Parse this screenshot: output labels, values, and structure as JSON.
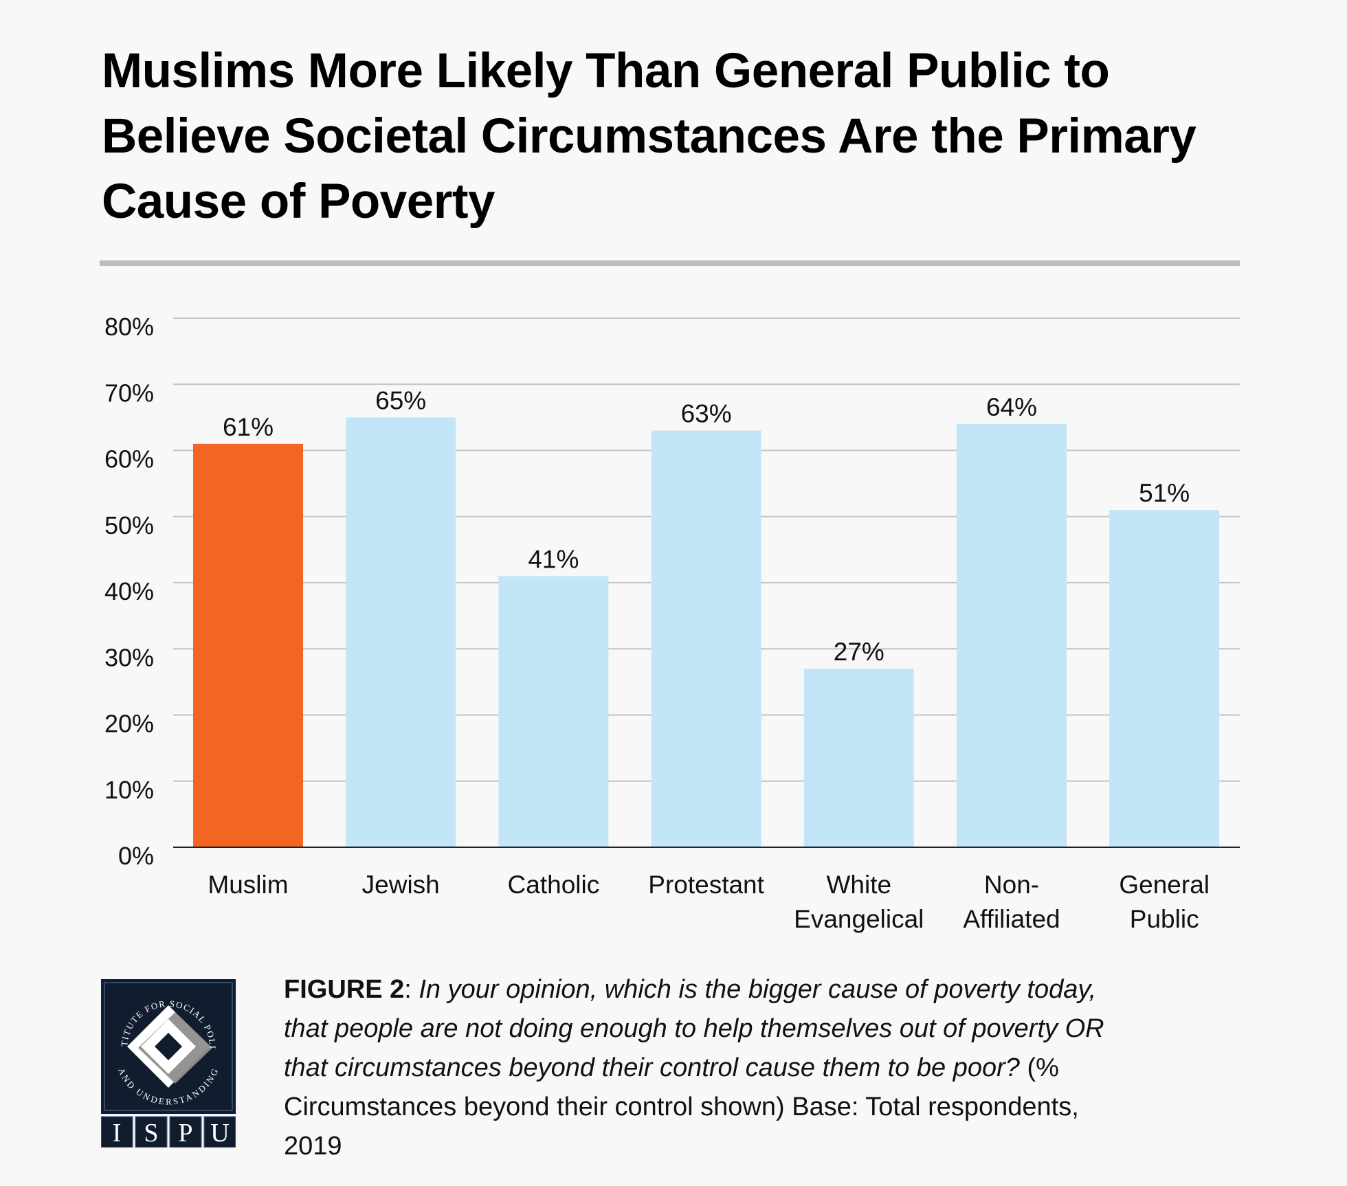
{
  "title": {
    "lines": [
      "Muslims More Likely Than General Public to",
      "Believe Societal Circumstances Are the Primary",
      "Cause of Poverty"
    ]
  },
  "chart_data": {
    "type": "bar",
    "title": "Muslims More Likely Than General Public to Believe Societal Circumstances Are the Primary Cause of Poverty",
    "xlabel": "",
    "ylabel": "",
    "categories": [
      "Muslim",
      "Jewish",
      "Catholic",
      "Protestant",
      "White Evangelical",
      "Non-Affiliated",
      "General Public"
    ],
    "category_label_lines": [
      [
        "Muslim"
      ],
      [
        "Jewish"
      ],
      [
        "Catholic"
      ],
      [
        "Protestant"
      ],
      [
        "White",
        "Evangelical"
      ],
      [
        "Non-",
        "Affiliated"
      ],
      [
        "General",
        "Public"
      ]
    ],
    "values": [
      61,
      65,
      41,
      63,
      27,
      64,
      51
    ],
    "value_labels": [
      "61%",
      "65%",
      "41%",
      "63%",
      "27%",
      "64%",
      "51%"
    ],
    "ylim": [
      0,
      80
    ],
    "yticks": [
      0,
      10,
      20,
      30,
      40,
      50,
      60,
      70,
      80
    ],
    "ytick_labels": [
      "0%",
      "10%",
      "20%",
      "30%",
      "40%",
      "50%",
      "60%",
      "70%",
      "80%"
    ],
    "grid": true,
    "legend": "none",
    "highlight_index": 0,
    "colors": {
      "highlight": "#f26522",
      "default": "#c2e6f8",
      "gridline": "#c4c4c4",
      "axis": "#222222"
    }
  },
  "caption": {
    "lines": [
      [
        {
          "text": "FIGURE 2",
          "style": "bold"
        },
        {
          "text": ": ",
          "style": "normal"
        },
        {
          "text": "In your opinion, which is the bigger cause of poverty today,",
          "style": "italic"
        }
      ],
      [
        {
          "text": "that people are not doing enough to help themselves out of poverty OR",
          "style": "italic"
        }
      ],
      [
        {
          "text": "that circumstances beyond their control cause them to be poor?",
          "style": "italic"
        },
        {
          "text": " (%",
          "style": "normal"
        }
      ],
      [
        {
          "text": "Circumstances beyond their control shown) Base: Total respondents,",
          "style": "normal"
        }
      ],
      [
        {
          "text": "2019",
          "style": "normal"
        }
      ]
    ]
  },
  "logo": {
    "ring_text_top": "INSTITUTE FOR SOCIAL POLICY",
    "ring_text_bottom": "AND UNDERSTANDING",
    "letters": [
      "I",
      "S",
      "P",
      "U"
    ],
    "colors": {
      "navy": "#111c2e",
      "border": "#4d6a8c",
      "gray": "#8e8e8e",
      "white": "#ffffff"
    }
  }
}
